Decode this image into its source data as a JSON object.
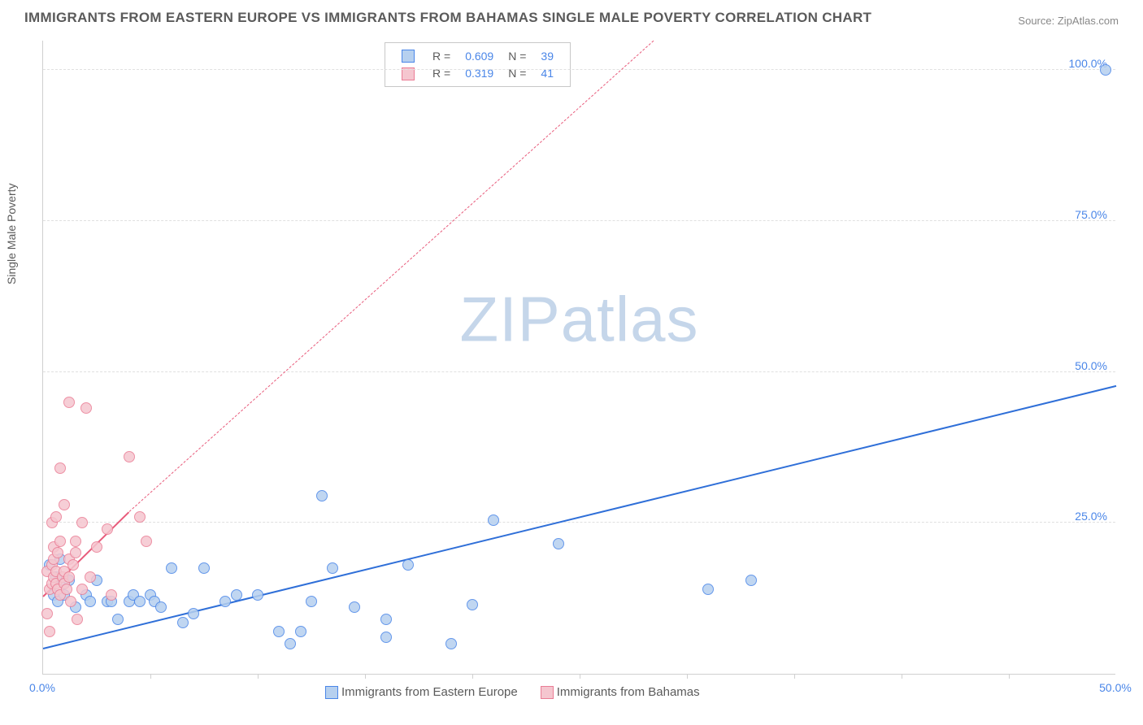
{
  "title": "IMMIGRANTS FROM EASTERN EUROPE VS IMMIGRANTS FROM BAHAMAS SINGLE MALE POVERTY CORRELATION CHART",
  "source_label": "Source:",
  "source_name": "ZipAtlas.com",
  "y_axis_label": "Single Male Poverty",
  "watermark_a": "ZIP",
  "watermark_b": "atlas",
  "chart": {
    "type": "scatter",
    "xlim": [
      0,
      50
    ],
    "ylim": [
      0,
      105
    ],
    "x_ticks": [
      0,
      50
    ],
    "x_tick_labels": [
      "0.0%",
      "50.0%"
    ],
    "x_minor_ticks": [
      5,
      10,
      15,
      20,
      25,
      30,
      35,
      40,
      45
    ],
    "y_ticks": [
      25,
      50,
      75,
      100
    ],
    "y_tick_labels": [
      "25.0%",
      "50.0%",
      "75.0%",
      "100.0%"
    ],
    "background_color": "#ffffff",
    "grid_color": "#e0e0e0",
    "axis_color": "#d0d0d0",
    "point_radius": 7,
    "series": [
      {
        "name": "Immigrants from Eastern Europe",
        "fill_color": "#b6d0ef",
        "stroke_color": "#4a86e8",
        "r_value": "0.609",
        "n_value": "39",
        "trend": {
          "x1": 0,
          "y1": 4.5,
          "x2": 50,
          "y2": 48,
          "color": "#2f6fd8",
          "width": 2.5,
          "dash": "solid"
        },
        "points": [
          [
            0.3,
            18
          ],
          [
            0.5,
            13
          ],
          [
            0.6,
            16
          ],
          [
            0.7,
            12
          ],
          [
            0.8,
            19
          ],
          [
            1,
            13
          ],
          [
            1,
            15
          ],
          [
            1.2,
            15.5
          ],
          [
            1.5,
            11
          ],
          [
            2,
            13
          ],
          [
            2.2,
            12
          ],
          [
            2.5,
            15.5
          ],
          [
            3,
            12
          ],
          [
            3.2,
            12
          ],
          [
            3.5,
            9
          ],
          [
            4,
            12
          ],
          [
            4.2,
            13
          ],
          [
            4.5,
            12
          ],
          [
            5,
            13
          ],
          [
            5.2,
            12
          ],
          [
            5.5,
            11
          ],
          [
            6,
            17.5
          ],
          [
            6.5,
            8.5
          ],
          [
            7,
            10
          ],
          [
            7.5,
            17.5
          ],
          [
            8.5,
            12
          ],
          [
            9,
            13
          ],
          [
            10,
            13
          ],
          [
            11,
            7
          ],
          [
            11.5,
            5
          ],
          [
            12,
            7
          ],
          [
            12.5,
            12
          ],
          [
            13,
            29.5
          ],
          [
            13.5,
            17.5
          ],
          [
            14.5,
            11
          ],
          [
            16,
            6
          ],
          [
            16,
            9
          ],
          [
            17,
            18
          ],
          [
            19,
            5
          ],
          [
            20,
            11.5
          ],
          [
            21,
            25.5
          ],
          [
            24,
            21.5
          ],
          [
            31,
            14
          ],
          [
            33,
            15.5
          ],
          [
            49.5,
            100
          ]
        ]
      },
      {
        "name": "Immigrants from Bahamas",
        "fill_color": "#f5c6cf",
        "stroke_color": "#ea7d95",
        "r_value": "0.319",
        "n_value": "41",
        "trend": {
          "x1": 0,
          "y1": 13,
          "x2": 4,
          "y2": 27,
          "color": "#e85b7b",
          "width": 2.5,
          "dash": "solid",
          "extend_dash_to_x": 30,
          "extend_dash_to_y": 110
        },
        "points": [
          [
            0.2,
            10
          ],
          [
            0.2,
            17
          ],
          [
            0.3,
            7
          ],
          [
            0.3,
            14
          ],
          [
            0.4,
            15
          ],
          [
            0.4,
            18
          ],
          [
            0.4,
            25
          ],
          [
            0.5,
            16
          ],
          [
            0.5,
            19
          ],
          [
            0.5,
            21
          ],
          [
            0.6,
            15
          ],
          [
            0.6,
            17
          ],
          [
            0.6,
            26
          ],
          [
            0.7,
            14
          ],
          [
            0.7,
            20
          ],
          [
            0.8,
            13
          ],
          [
            0.8,
            22
          ],
          [
            0.8,
            34
          ],
          [
            0.9,
            16
          ],
          [
            1,
            15
          ],
          [
            1,
            17
          ],
          [
            1,
            28
          ],
          [
            1.1,
            14
          ],
          [
            1.2,
            16
          ],
          [
            1.2,
            19
          ],
          [
            1.2,
            45
          ],
          [
            1.3,
            12
          ],
          [
            1.4,
            18
          ],
          [
            1.5,
            20
          ],
          [
            1.5,
            22
          ],
          [
            1.6,
            9
          ],
          [
            1.8,
            14
          ],
          [
            1.8,
            25
          ],
          [
            2,
            44
          ],
          [
            2.2,
            16
          ],
          [
            2.5,
            21
          ],
          [
            3,
            24
          ],
          [
            3.2,
            13
          ],
          [
            4,
            36
          ],
          [
            4.5,
            26
          ],
          [
            4.8,
            22
          ]
        ]
      }
    ]
  },
  "legend_top": {
    "r_label": "R =",
    "n_label": "N ="
  },
  "legend_bottom": {
    "items": [
      "Immigrants from Eastern Europe",
      "Immigrants from Bahamas"
    ]
  }
}
